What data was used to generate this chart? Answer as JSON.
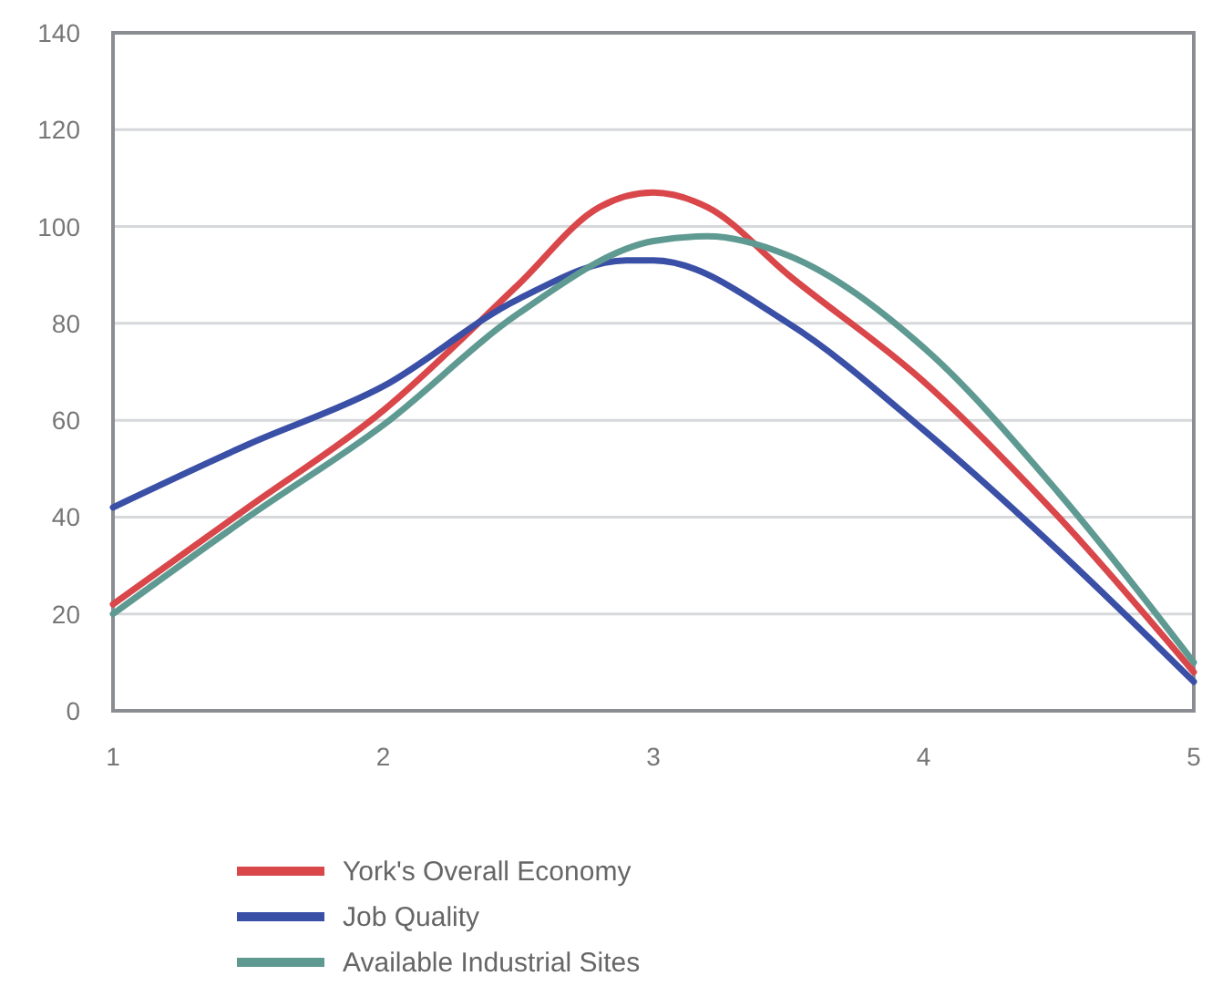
{
  "chart_data": {
    "type": "line",
    "xlim": [
      1,
      5
    ],
    "xticks": [
      1,
      2,
      3,
      4,
      5
    ],
    "ylim": [
      0,
      140
    ],
    "yticks": [
      0,
      20,
      40,
      60,
      80,
      100,
      120,
      140
    ],
    "grid": "y",
    "legend": "bottom",
    "marker": "none",
    "line_style": "solid",
    "series": [
      {
        "name": "York's Overall Economy",
        "color": "#d9474a",
        "x": [
          1,
          1.5,
          2,
          2.5,
          2.8,
          3,
          3.2,
          3.5,
          4,
          4.5,
          5
        ],
        "values": [
          22,
          42,
          62,
          88,
          104,
          107,
          104,
          90,
          68,
          40,
          8
        ]
      },
      {
        "name": "Job Quality",
        "color": "#3a4fa6",
        "x": [
          1,
          1.5,
          2,
          2.5,
          2.9,
          3,
          3.5,
          4,
          4.5,
          5
        ],
        "values": [
          42,
          55,
          67,
          85,
          93,
          93,
          80,
          58,
          33,
          6
        ]
      },
      {
        "name": "Available Industrial Sites",
        "color": "#5f9a92",
        "x": [
          1,
          1.5,
          2,
          2.5,
          3,
          3.2,
          3.5,
          4,
          4.5,
          5
        ],
        "values": [
          20,
          40,
          59,
          82,
          97,
          98,
          94,
          75,
          45,
          10
        ]
      }
    ]
  }
}
